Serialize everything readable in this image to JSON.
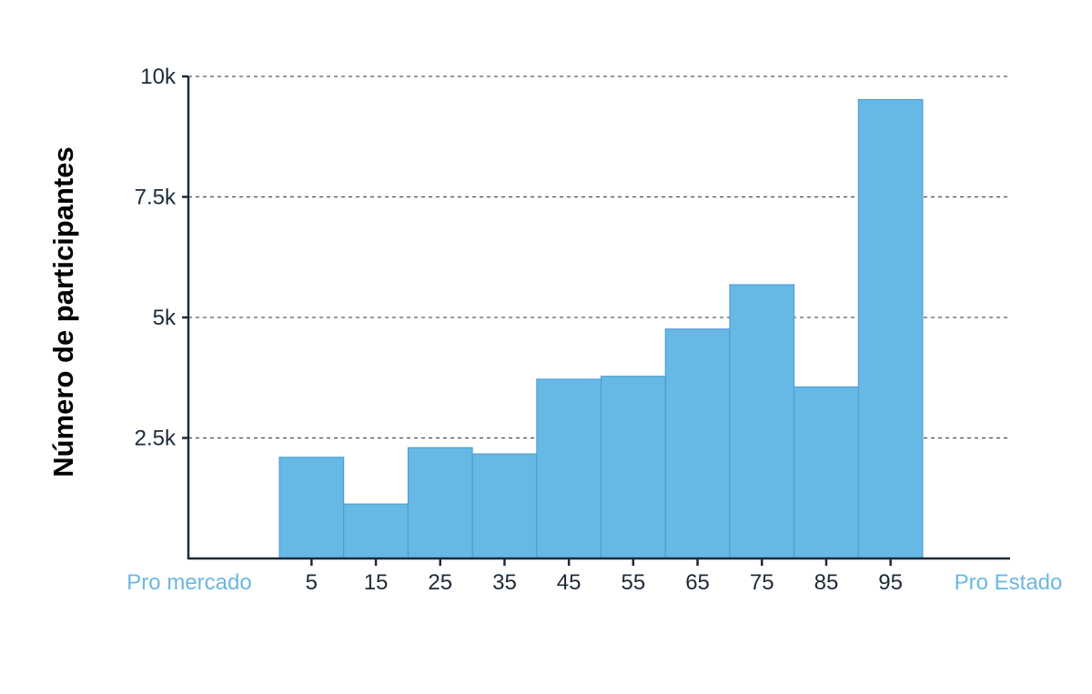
{
  "chart_data": {
    "type": "bar",
    "categories": [
      "5",
      "15",
      "25",
      "35",
      "45",
      "55",
      "65",
      "75",
      "85",
      "95"
    ],
    "values": [
      2100,
      1130,
      2300,
      2170,
      3720,
      3780,
      4760,
      5680,
      3560,
      9520
    ],
    "ylabel": "Número de participantes",
    "yticks": [
      {
        "value": 2500,
        "label": "2.5k"
      },
      {
        "value": 5000,
        "label": "5k"
      },
      {
        "value": 7500,
        "label": "7.5k"
      },
      {
        "value": 10000,
        "label": "10k"
      }
    ],
    "ylim": [
      0,
      10000
    ],
    "x_left_label": "Pro mercado",
    "x_right_label": "Pro Estado",
    "grid": true,
    "colors": {
      "bar": "#67b8e4",
      "axis": "#1b2a3a",
      "end_labels": "#6ab8e4"
    }
  }
}
